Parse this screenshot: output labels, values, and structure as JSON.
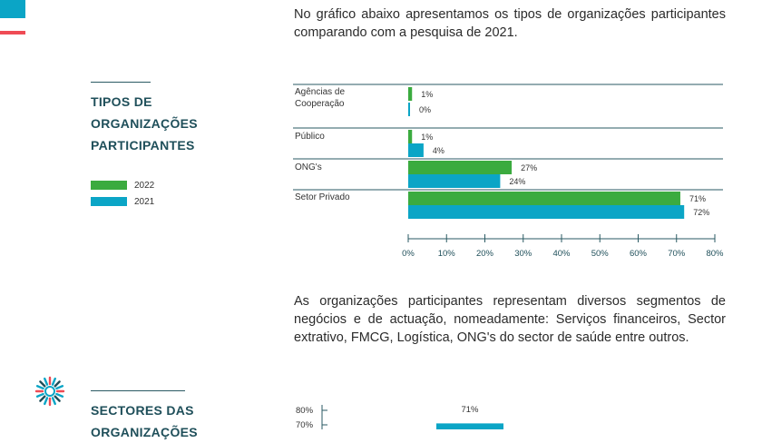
{
  "intro_text": "No gráfico abaixo apresentamos os tipos de organizações participantes comparando com a pesquisa de 2021.",
  "section1": {
    "title": "TIPOS DE\nORGANIZAÇÕES\nPARTICIPANTES"
  },
  "legend": [
    {
      "label": "2022",
      "color": "#3bab3f"
    },
    {
      "label": "2021",
      "color": "#0ba5c6"
    }
  ],
  "chart_data": [
    {
      "type": "bar",
      "orientation": "horizontal",
      "categories": [
        "Agências de\nCooperação",
        "Público",
        "ONG's",
        "Setor Privado"
      ],
      "series": [
        {
          "name": "2022",
          "color": "#3bab3f",
          "values": [
            1,
            1,
            27,
            71
          ]
        },
        {
          "name": "2021",
          "color": "#0ba5c6",
          "values": [
            0,
            4,
            24,
            72
          ]
        }
      ],
      "xlim": [
        0,
        80
      ],
      "xticks": [
        "0%",
        "10%",
        "20%",
        "30%",
        "40%",
        "50%",
        "60%",
        "70%",
        "80%"
      ],
      "value_suffix": "%"
    },
    {
      "type": "bar",
      "orientation": "vertical",
      "yticks": [
        "80%",
        "70%"
      ],
      "values": [
        71
      ],
      "value_labels": [
        "71%"
      ],
      "color": "#0ba5c6"
    }
  ],
  "intro2_text": "As organizações participantes representam diversos segmentos de negócios e de actuação, nomeadamente:  Serviços financeiros, Sector extrativo, FMCG, Logística, ONG's do sector de saúde entre outros.",
  "section2": {
    "title": "SECTORES DAS\nORGANIZAÇÕES"
  }
}
